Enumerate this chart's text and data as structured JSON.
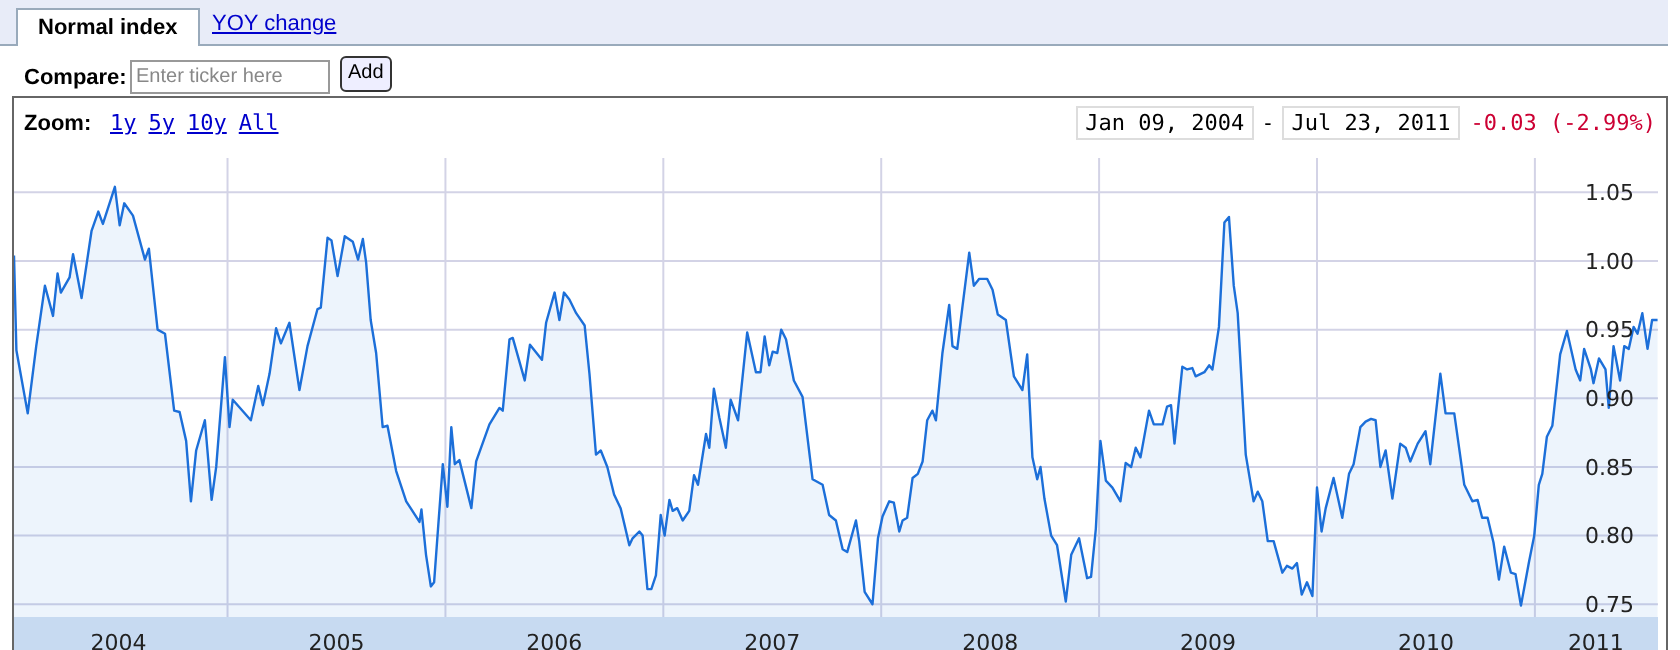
{
  "chart_data": {
    "type": "area",
    "annotations": [
      "Normal index",
      "YOY change",
      "Compare:",
      "Enter ticker here",
      "Add",
      "Zoom:",
      "1y",
      "5y",
      "10y",
      "All",
      "Jan 09, 2004",
      "-",
      "Jul 23, 2011",
      "-0.03 (-2.99%)"
    ],
    "x": [
      2004.02,
      2004.031,
      2004.083,
      2004.122,
      2004.162,
      2004.199,
      2004.22,
      2004.235,
      2004.275,
      2004.291,
      2004.33,
      2004.376,
      2004.407,
      2004.428,
      2004.483,
      2004.505,
      2004.526,
      2004.566,
      2004.621,
      2004.639,
      2004.679,
      2004.713,
      2004.755,
      2004.78,
      2004.81,
      2004.832,
      2004.856,
      2004.896,
      2004.927,
      2004.948,
      2004.988,
      2005.009,
      2005.024,
      2005.107,
      2005.141,
      2005.162,
      2005.193,
      2005.223,
      2005.245,
      2005.284,
      2005.33,
      2005.367,
      2005.413,
      2005.428,
      2005.459,
      2005.477,
      2005.505,
      2005.538,
      2005.575,
      2005.599,
      2005.621,
      2005.636,
      2005.657,
      2005.682,
      2005.712,
      2005.734,
      2005.774,
      2005.82,
      2005.881,
      2005.89,
      2005.911,
      2005.933,
      2005.948,
      2005.966,
      2005.988,
      2006.009,
      2006.027,
      2006.043,
      2006.064,
      2006.119,
      2006.141,
      2006.202,
      2006.248,
      2006.263,
      2006.294,
      2006.309,
      2006.364,
      2006.388,
      2006.443,
      2006.462,
      2006.501,
      2006.523,
      2006.544,
      2006.569,
      2006.6,
      2006.639,
      2006.661,
      2006.691,
      2006.713,
      2006.743,
      2006.774,
      2006.804,
      2006.844,
      2006.859,
      2006.89,
      2006.905,
      2006.927,
      2006.945,
      2006.966,
      2006.988,
      2007.006,
      2007.028,
      2007.043,
      2007.064,
      2007.089,
      2007.119,
      2007.141,
      2007.159,
      2007.196,
      2007.211,
      2007.232,
      2007.257,
      2007.287,
      2007.309,
      2007.343,
      2007.385,
      2007.425,
      2007.446,
      2007.465,
      2007.486,
      2007.502,
      2007.523,
      2007.541,
      2007.563,
      2007.599,
      2007.639,
      2007.685,
      2007.731,
      2007.761,
      2007.792,
      2007.823,
      2007.844,
      2007.884,
      2007.899,
      2007.924,
      2007.96,
      2007.985,
      2008.006,
      2008.037,
      2008.058,
      2008.083,
      2008.098,
      2008.119,
      2008.144,
      2008.168,
      2008.19,
      2008.211,
      2008.235,
      2008.251,
      2008.281,
      2008.312,
      2008.327,
      2008.349,
      2008.373,
      2008.404,
      2008.425,
      2008.45,
      2008.486,
      2008.511,
      2008.535,
      2008.572,
      2008.609,
      2008.648,
      2008.67,
      2008.694,
      2008.716,
      2008.731,
      2008.749,
      2008.78,
      2008.807,
      2008.847,
      2008.872,
      2008.908,
      2008.945,
      2008.963,
      2008.985,
      2009.006,
      2009.031,
      2009.061,
      2009.098,
      2009.122,
      2009.147,
      2009.168,
      2009.19,
      2009.229,
      2009.251,
      2009.291,
      2009.312,
      2009.33,
      2009.346,
      2009.382,
      2009.404,
      2009.428,
      2009.443,
      2009.483,
      2009.505,
      2009.52,
      2009.55,
      2009.575,
      2009.596,
      2009.618,
      2009.636,
      2009.673,
      2009.709,
      2009.728,
      2009.749,
      2009.774,
      2009.801,
      2009.841,
      2009.862,
      2009.887,
      2009.908,
      2009.93,
      2009.954,
      2009.979,
      2010.0,
      2010.021,
      2010.04,
      2010.076,
      2010.116,
      2010.147,
      2010.168,
      2010.199,
      2010.223,
      2010.248,
      2010.269,
      2010.291,
      2010.315,
      2010.346,
      2010.382,
      2010.407,
      2010.428,
      2010.462,
      2010.498,
      2010.52,
      2010.566,
      2010.59,
      2010.63,
      2010.676,
      2010.713,
      2010.737,
      2010.758,
      2010.783,
      2010.81,
      2010.835,
      2010.859,
      2010.89,
      2010.911,
      2010.936,
      2010.972,
      2010.997,
      2011.018,
      2011.034,
      2011.055,
      2011.08,
      2011.116,
      2011.147,
      2011.187,
      2011.208,
      2011.226,
      2011.257,
      2011.269,
      2011.294,
      2011.324,
      2011.339,
      2011.361,
      2011.391,
      2011.41,
      2011.431,
      2011.453,
      2011.471,
      2011.493,
      2011.517,
      2011.538,
      2011.563
    ],
    "series": [
      {
        "color": "#1c6fd9",
        "values": [
          1.004,
          0.935,
          0.889,
          0.938,
          0.982,
          0.96,
          0.991,
          0.977,
          0.988,
          1.005,
          0.973,
          1.022,
          1.036,
          1.027,
          1.054,
          1.026,
          1.042,
          1.033,
          1.001,
          1.009,
          0.95,
          0.947,
          0.891,
          0.89,
          0.869,
          0.825,
          0.862,
          0.884,
          0.826,
          0.85,
          0.93,
          0.879,
          0.899,
          0.884,
          0.909,
          0.895,
          0.918,
          0.951,
          0.94,
          0.955,
          0.906,
          0.938,
          0.965,
          0.966,
          1.017,
          1.015,
          0.989,
          1.018,
          1.014,
          1.001,
          1.016,
          0.999,
          0.957,
          0.933,
          0.879,
          0.88,
          0.847,
          0.825,
          0.81,
          0.819,
          0.786,
          0.763,
          0.766,
          0.805,
          0.852,
          0.821,
          0.879,
          0.852,
          0.855,
          0.82,
          0.854,
          0.881,
          0.893,
          0.891,
          0.943,
          0.944,
          0.913,
          0.939,
          0.928,
          0.955,
          0.977,
          0.957,
          0.977,
          0.972,
          0.962,
          0.953,
          0.918,
          0.859,
          0.862,
          0.85,
          0.83,
          0.82,
          0.793,
          0.798,
          0.803,
          0.8,
          0.761,
          0.761,
          0.771,
          0.815,
          0.8,
          0.826,
          0.818,
          0.82,
          0.811,
          0.818,
          0.844,
          0.837,
          0.874,
          0.864,
          0.907,
          0.886,
          0.864,
          0.899,
          0.884,
          0.948,
          0.919,
          0.919,
          0.945,
          0.924,
          0.934,
          0.933,
          0.95,
          0.943,
          0.913,
          0.901,
          0.841,
          0.837,
          0.815,
          0.811,
          0.79,
          0.788,
          0.811,
          0.796,
          0.759,
          0.75,
          0.798,
          0.814,
          0.825,
          0.824,
          0.803,
          0.811,
          0.813,
          0.842,
          0.845,
          0.854,
          0.884,
          0.891,
          0.884,
          0.933,
          0.968,
          0.938,
          0.936,
          0.967,
          1.006,
          0.982,
          0.987,
          0.987,
          0.979,
          0.961,
          0.957,
          0.916,
          0.906,
          0.932,
          0.857,
          0.841,
          0.85,
          0.827,
          0.8,
          0.793,
          0.752,
          0.786,
          0.798,
          0.769,
          0.77,
          0.805,
          0.869,
          0.84,
          0.835,
          0.825,
          0.853,
          0.85,
          0.864,
          0.857,
          0.891,
          0.881,
          0.881,
          0.894,
          0.895,
          0.867,
          0.923,
          0.921,
          0.922,
          0.916,
          0.919,
          0.924,
          0.921,
          0.952,
          1.028,
          1.032,
          0.982,
          0.962,
          0.859,
          0.825,
          0.832,
          0.825,
          0.796,
          0.796,
          0.773,
          0.778,
          0.776,
          0.78,
          0.757,
          0.766,
          0.756,
          0.835,
          0.803,
          0.82,
          0.842,
          0.813,
          0.845,
          0.852,
          0.879,
          0.883,
          0.885,
          0.884,
          0.85,
          0.862,
          0.827,
          0.867,
          0.864,
          0.854,
          0.867,
          0.876,
          0.852,
          0.918,
          0.889,
          0.889,
          0.837,
          0.825,
          0.826,
          0.813,
          0.813,
          0.795,
          0.768,
          0.792,
          0.773,
          0.772,
          0.749,
          0.78,
          0.8,
          0.837,
          0.845,
          0.872,
          0.88,
          0.932,
          0.949,
          0.921,
          0.913,
          0.936,
          0.921,
          0.911,
          0.929,
          0.921,
          0.893,
          0.938,
          0.913,
          0.938,
          0.936,
          0.952,
          0.947,
          0.962,
          0.936,
          0.957,
          0.957
        ]
      }
    ],
    "xlim": [
      2004.02,
      2011.565
    ],
    "xticks": [
      {
        "value": 2004.5,
        "label": "2004"
      },
      {
        "value": 2005,
        "label": null
      },
      {
        "value": 2005.5,
        "label": "2005"
      },
      {
        "value": 2006,
        "label": null
      },
      {
        "value": 2006.5,
        "label": "2006"
      },
      {
        "value": 2007,
        "label": null
      },
      {
        "value": 2007.5,
        "label": "2007"
      },
      {
        "value": 2008,
        "label": null
      },
      {
        "value": 2008.5,
        "label": "2008"
      },
      {
        "value": 2009,
        "label": null
      },
      {
        "value": 2009.5,
        "label": "2009"
      },
      {
        "value": 2010,
        "label": null
      },
      {
        "value": 2010.5,
        "label": "2010"
      },
      {
        "value": 2011,
        "label": null
      },
      {
        "value": 2011.28,
        "label": "2011"
      }
    ],
    "ylim": [
      0.74,
      1.075
    ],
    "yticks": [
      {
        "value": 0.75,
        "label": "0.75"
      },
      {
        "value": 0.8,
        "label": "0.80"
      },
      {
        "value": 0.85,
        "label": "0.85"
      },
      {
        "value": 0.9,
        "label": "0.90"
      },
      {
        "value": 0.95,
        "label": "0.95"
      },
      {
        "value": 1,
        "label": "1.00"
      },
      {
        "value": 1.05,
        "label": "1.05"
      }
    ],
    "grid": true,
    "marker": "none"
  }
}
